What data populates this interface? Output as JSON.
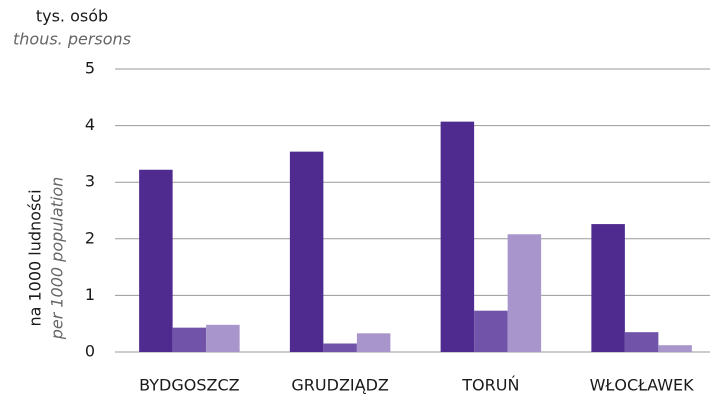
{
  "chart_data": {
    "type": "bar",
    "y_unit_label": "tys. osób",
    "y_unit_label_en": "thous. persons",
    "ylabel": "na 1000 ludności",
    "ylabel_en": "per 1000 population",
    "categories": [
      "BYDGOSZCZ",
      "GRUDZIĄDZ",
      "TORUŃ",
      "WŁOCŁAWEK"
    ],
    "series": [
      {
        "color": "#4f2b8f",
        "values": [
          3.22,
          3.54,
          4.07,
          2.26
        ]
      },
      {
        "color": "#7153a9",
        "values": [
          0.43,
          0.15,
          0.73,
          0.35
        ]
      },
      {
        "color": "#a895cc",
        "values": [
          0.48,
          0.33,
          2.08,
          0.12
        ]
      }
    ],
    "ylim": [
      0,
      5
    ],
    "yticks": [
      0,
      1,
      2,
      3,
      4,
      5
    ],
    "grid": true
  }
}
